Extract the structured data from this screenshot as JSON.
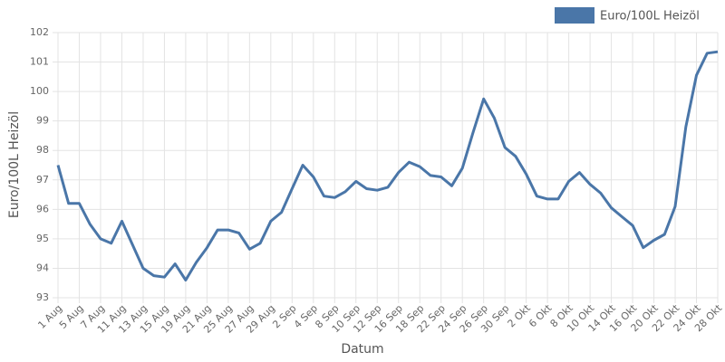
{
  "chart_data": {
    "type": "line",
    "x_label": "Datum",
    "y_label": "Euro/100L Heizöl",
    "legend_position": "top-right",
    "grid": true,
    "categories": [
      "1 Aug",
      null,
      "5 Aug",
      null,
      "7 Aug",
      null,
      "11 Aug",
      null,
      "13 Aug",
      null,
      "15 Aug",
      null,
      "19 Aug",
      null,
      "21 Aug",
      null,
      "25 Aug",
      null,
      "27 Aug",
      null,
      "29 Aug",
      null,
      "2 Sep",
      null,
      "4 Sep",
      null,
      "8 Sep",
      null,
      "10 Sep",
      null,
      "12 Sep",
      null,
      "16 Sep",
      null,
      "18 Sep",
      null,
      "22 Sep",
      null,
      "24 Sep",
      null,
      "26 Sep",
      null,
      "30 Sep",
      null,
      "2 Okt",
      null,
      "6 Okt",
      null,
      "8 Okt",
      null,
      "10 Okt",
      null,
      "14 Okt",
      null,
      "16 Okt",
      null,
      "20 Okt",
      null,
      "22 Okt",
      null,
      "24 Okt",
      null,
      "28 Okt"
    ],
    "series": [
      {
        "name": "Euro/100L Heizöl",
        "color": "#4a76a8",
        "values": [
          97.5,
          96.2,
          96.2,
          95.5,
          95.0,
          94.85,
          95.6,
          94.8,
          94.0,
          93.75,
          93.7,
          94.15,
          93.6,
          94.2,
          94.7,
          95.3,
          95.3,
          95.2,
          94.65,
          94.85,
          95.6,
          95.9,
          96.7,
          97.5,
          97.1,
          96.45,
          96.4,
          96.6,
          96.95,
          96.7,
          96.65,
          96.75,
          97.25,
          97.6,
          97.45,
          97.15,
          97.1,
          96.8,
          97.4,
          98.6,
          99.75,
          99.1,
          98.1,
          97.8,
          97.2,
          96.45,
          96.35,
          96.35,
          96.95,
          97.25,
          96.85,
          96.55,
          96.05,
          95.75,
          95.45,
          94.7,
          94.95,
          95.15,
          96.1,
          98.8,
          100.55,
          101.3,
          101.35
        ]
      }
    ],
    "ylim": [
      93,
      102
    ],
    "yticks": [
      93,
      94,
      95,
      96,
      97,
      98,
      99,
      100,
      101,
      102
    ]
  }
}
